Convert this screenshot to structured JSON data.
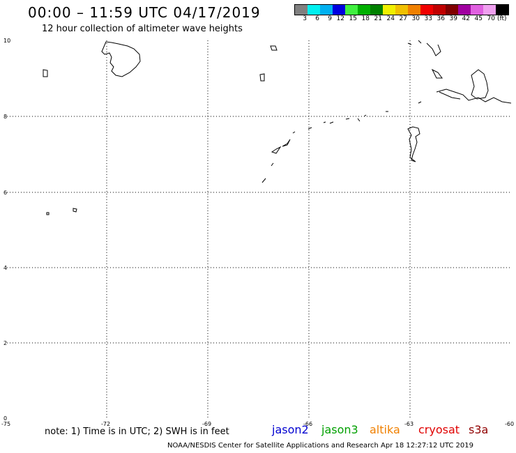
{
  "title": "00:00 – 11:59 UTC 04/17/2019",
  "subtitle": "12 hour collection of altimeter wave heights",
  "legend": {
    "colors": [
      "#808080",
      "#00f0f0",
      "#00b0f0",
      "#0000e0",
      "#40f040",
      "#00b000",
      "#008000",
      "#f0f000",
      "#f0c000",
      "#f08000",
      "#f00000",
      "#c00000",
      "#800000",
      "#a000a0",
      "#e060e0",
      "#f0a0f0",
      "#000000"
    ],
    "labels": [
      "3",
      "6",
      "9",
      "12",
      "15",
      "18",
      "21",
      "24",
      "27",
      "30",
      "33",
      "36",
      "39",
      "42",
      "45",
      "70"
    ],
    "unit": "(ft)"
  },
  "axes": {
    "x_ticks": [
      "-75",
      "-72",
      "-69",
      "-66",
      "-63",
      "-60"
    ],
    "y_ticks": [
      "10",
      "8",
      "6",
      "4",
      "2",
      "0"
    ]
  },
  "note": "note: 1) Time is in UTC; 2) SWH is in feet",
  "satellites": [
    {
      "name": "jason2",
      "color": "#0000d0"
    },
    {
      "name": "jason3",
      "color": "#00a000"
    },
    {
      "name": "altika",
      "color": "#f08000"
    },
    {
      "name": "cryosat",
      "color": "#e00000"
    },
    {
      "name": "s3a",
      "color": "#900000"
    }
  ],
  "footer": "NOAA/NESDIS Center for Satellite Applications and Research   Apr 18 12:27:12 UTC 2019"
}
